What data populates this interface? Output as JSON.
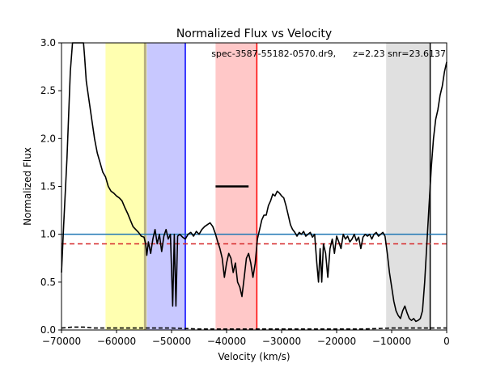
{
  "chart_data": {
    "type": "line",
    "title": "Normalized Flux vs Velocity",
    "xlabel": "Velocity (km/s)",
    "ylabel": "Normalized Flux",
    "xlim": [
      -70000,
      0
    ],
    "ylim": [
      0.0,
      3.0
    ],
    "xticks": [
      -70000,
      -60000,
      -50000,
      -40000,
      -30000,
      -20000,
      -10000,
      0
    ],
    "xtick_labels": [
      "−70000",
      "−60000",
      "−50000",
      "−40000",
      "−30000",
      "−20000",
      "−10000",
      "0"
    ],
    "yticks": [
      0.0,
      0.5,
      1.0,
      1.5,
      2.0,
      2.5,
      3.0
    ],
    "ytick_labels": [
      "0.0",
      "0.5",
      "1.0",
      "1.5",
      "2.0",
      "2.5",
      "3.0"
    ],
    "annotation": "spec-3587-55182-0570.dr9,      z=2.23 snr=23.6137",
    "grid": false,
    "colors": {
      "flux": "#000000",
      "continuum": "#1f77b4",
      "threshold": "#d62728",
      "yellow_band": "#ffffb0",
      "blue_band": "#c8c8ff",
      "red_band": "#ffc8c8",
      "gray_band": "#e0e0e0",
      "blue_line": "#0000ff",
      "red_line": "#ff0000",
      "olive_line": "#b8b080"
    },
    "shaded_regions": [
      {
        "x0": -62000,
        "x1": -54500,
        "color": "#ffffb0"
      },
      {
        "x0": -54500,
        "x1": -47500,
        "color": "#c8c8ff"
      },
      {
        "x0": -42000,
        "x1": -34500,
        "color": "#ffc8c8"
      },
      {
        "x0": -11000,
        "x1": -3000,
        "color": "#e0e0e0"
      }
    ],
    "vertical_lines": [
      {
        "x": -54800,
        "color": "#b8b080",
        "width": 3
      },
      {
        "x": -47500,
        "color": "#0000ff",
        "width": 1.5
      },
      {
        "x": -34500,
        "color": "#ff0000",
        "width": 1.5
      },
      {
        "x": -3000,
        "color": "#000000",
        "width": 1.5
      }
    ],
    "horizontal_lines": [
      {
        "y": 1.0,
        "color": "#1f77b4",
        "style": "solid"
      },
      {
        "y": 0.9,
        "color": "#d62728",
        "style": "dashed"
      }
    ],
    "segment": {
      "x0": -42000,
      "x1": -36000,
      "y": 1.5
    },
    "series": [
      {
        "values": [
          [
            -70000,
            0.6
          ],
          [
            -69600,
            1.1
          ],
          [
            -69000,
            1.8
          ],
          [
            -68400,
            2.7
          ],
          [
            -68000,
            3.0
          ],
          [
            -66000,
            3.0
          ],
          [
            -65800,
            2.85
          ],
          [
            -65500,
            2.6
          ],
          [
            -65000,
            2.4
          ],
          [
            -64500,
            2.2
          ],
          [
            -64000,
            2.0
          ],
          [
            -63500,
            1.85
          ],
          [
            -63000,
            1.75
          ],
          [
            -62500,
            1.65
          ],
          [
            -62000,
            1.6
          ],
          [
            -61500,
            1.5
          ],
          [
            -61000,
            1.45
          ],
          [
            -60500,
            1.43
          ],
          [
            -60000,
            1.4
          ],
          [
            -59500,
            1.38
          ],
          [
            -59000,
            1.35
          ],
          [
            -58500,
            1.28
          ],
          [
            -58000,
            1.22
          ],
          [
            -57500,
            1.15
          ],
          [
            -57000,
            1.08
          ],
          [
            -56500,
            1.05
          ],
          [
            -56000,
            1.02
          ],
          [
            -55500,
            0.98
          ],
          [
            -55000,
            0.97
          ],
          [
            -54700,
            0.9
          ],
          [
            -54500,
            0.78
          ],
          [
            -54200,
            0.92
          ],
          [
            -53800,
            0.8
          ],
          [
            -53400,
            0.95
          ],
          [
            -53000,
            1.05
          ],
          [
            -52600,
            0.9
          ],
          [
            -52200,
            1.0
          ],
          [
            -51800,
            0.82
          ],
          [
            -51400,
            0.98
          ],
          [
            -51000,
            1.05
          ],
          [
            -50600,
            0.95
          ],
          [
            -50200,
            1.0
          ],
          [
            -49800,
            0.25
          ],
          [
            -49500,
            1.0
          ],
          [
            -49200,
            0.25
          ],
          [
            -48900,
            0.98
          ],
          [
            -48500,
            1.0
          ],
          [
            -48000,
            0.97
          ],
          [
            -47500,
            0.95
          ],
          [
            -47000,
            1.0
          ],
          [
            -46500,
            1.02
          ],
          [
            -46000,
            0.98
          ],
          [
            -45500,
            1.03
          ],
          [
            -45000,
            1.0
          ],
          [
            -44500,
            1.05
          ],
          [
            -44000,
            1.08
          ],
          [
            -43500,
            1.1
          ],
          [
            -43000,
            1.12
          ],
          [
            -42500,
            1.08
          ],
          [
            -42000,
            1.0
          ],
          [
            -41600,
            0.92
          ],
          [
            -41200,
            0.85
          ],
          [
            -40800,
            0.75
          ],
          [
            -40400,
            0.55
          ],
          [
            -40000,
            0.7
          ],
          [
            -39600,
            0.8
          ],
          [
            -39200,
            0.75
          ],
          [
            -38800,
            0.6
          ],
          [
            -38400,
            0.7
          ],
          [
            -38000,
            0.5
          ],
          [
            -37600,
            0.45
          ],
          [
            -37200,
            0.35
          ],
          [
            -36800,
            0.55
          ],
          [
            -36400,
            0.75
          ],
          [
            -36000,
            0.8
          ],
          [
            -35600,
            0.7
          ],
          [
            -35200,
            0.55
          ],
          [
            -34800,
            0.7
          ],
          [
            -34400,
            0.95
          ],
          [
            -34000,
            1.05
          ],
          [
            -33600,
            1.15
          ],
          [
            -33200,
            1.2
          ],
          [
            -32800,
            1.2
          ],
          [
            -32400,
            1.3
          ],
          [
            -32000,
            1.35
          ],
          [
            -31600,
            1.42
          ],
          [
            -31200,
            1.4
          ],
          [
            -30800,
            1.45
          ],
          [
            -30400,
            1.43
          ],
          [
            -30000,
            1.4
          ],
          [
            -29600,
            1.38
          ],
          [
            -29200,
            1.3
          ],
          [
            -28800,
            1.2
          ],
          [
            -28400,
            1.1
          ],
          [
            -28000,
            1.05
          ],
          [
            -27600,
            1.02
          ],
          [
            -27200,
            0.98
          ],
          [
            -26800,
            1.02
          ],
          [
            -26400,
            1.0
          ],
          [
            -26000,
            1.03
          ],
          [
            -25600,
            0.98
          ],
          [
            -25200,
            1.0
          ],
          [
            -24800,
            1.02
          ],
          [
            -24400,
            0.97
          ],
          [
            -24000,
            1.0
          ],
          [
            -23600,
            0.7
          ],
          [
            -23300,
            0.5
          ],
          [
            -23000,
            0.85
          ],
          [
            -22700,
            0.5
          ],
          [
            -22400,
            0.9
          ],
          [
            -22000,
            0.8
          ],
          [
            -21600,
            0.55
          ],
          [
            -21200,
            0.85
          ],
          [
            -20800,
            0.95
          ],
          [
            -20400,
            0.8
          ],
          [
            -20000,
            0.98
          ],
          [
            -19600,
            0.92
          ],
          [
            -19200,
            0.85
          ],
          [
            -18800,
            1.0
          ],
          [
            -18400,
            0.95
          ],
          [
            -18000,
            0.98
          ],
          [
            -17600,
            0.92
          ],
          [
            -17200,
            0.95
          ],
          [
            -16800,
            1.0
          ],
          [
            -16400,
            0.93
          ],
          [
            -16000,
            0.97
          ],
          [
            -15600,
            0.85
          ],
          [
            -15200,
            0.97
          ],
          [
            -14800,
            1.0
          ],
          [
            -14400,
            0.98
          ],
          [
            -14000,
            1.0
          ],
          [
            -13600,
            0.95
          ],
          [
            -13200,
            1.0
          ],
          [
            -12800,
            1.02
          ],
          [
            -12400,
            0.98
          ],
          [
            -12000,
            1.0
          ],
          [
            -11600,
            1.02
          ],
          [
            -11200,
            0.98
          ],
          [
            -10800,
            0.8
          ],
          [
            -10400,
            0.6
          ],
          [
            -10000,
            0.45
          ],
          [
            -9600,
            0.3
          ],
          [
            -9200,
            0.2
          ],
          [
            -8800,
            0.15
          ],
          [
            -8400,
            0.12
          ],
          [
            -8000,
            0.2
          ],
          [
            -7600,
            0.25
          ],
          [
            -7200,
            0.18
          ],
          [
            -6800,
            0.12
          ],
          [
            -6400,
            0.1
          ],
          [
            -6000,
            0.12
          ],
          [
            -5600,
            0.09
          ],
          [
            -5200,
            0.1
          ],
          [
            -4800,
            0.12
          ],
          [
            -4400,
            0.2
          ],
          [
            -4000,
            0.5
          ],
          [
            -3600,
            0.9
          ],
          [
            -3200,
            1.3
          ],
          [
            -2800,
            1.7
          ],
          [
            -2400,
            2.0
          ],
          [
            -2000,
            2.2
          ],
          [
            -1600,
            2.3
          ],
          [
            -1200,
            2.45
          ],
          [
            -800,
            2.55
          ],
          [
            -400,
            2.7
          ],
          [
            0,
            2.8
          ]
        ],
        "color": "#000000",
        "style": "solid"
      },
      {
        "values": [
          [
            -70000,
            0.02
          ],
          [
            -68000,
            0.03
          ],
          [
            -66000,
            0.03
          ],
          [
            -64000,
            0.02
          ],
          [
            -60000,
            0.02
          ],
          [
            -55000,
            0.02
          ],
          [
            -50000,
            0.02
          ],
          [
            -45000,
            0.01
          ],
          [
            -40000,
            0.01
          ],
          [
            -35000,
            0.01
          ],
          [
            -30000,
            0.01
          ],
          [
            -25000,
            0.01
          ],
          [
            -20000,
            0.01
          ],
          [
            -15000,
            0.01
          ],
          [
            -10000,
            0.02
          ],
          [
            -5000,
            0.02
          ],
          [
            0,
            0.02
          ]
        ],
        "color": "#000000",
        "style": "dashed"
      }
    ]
  }
}
